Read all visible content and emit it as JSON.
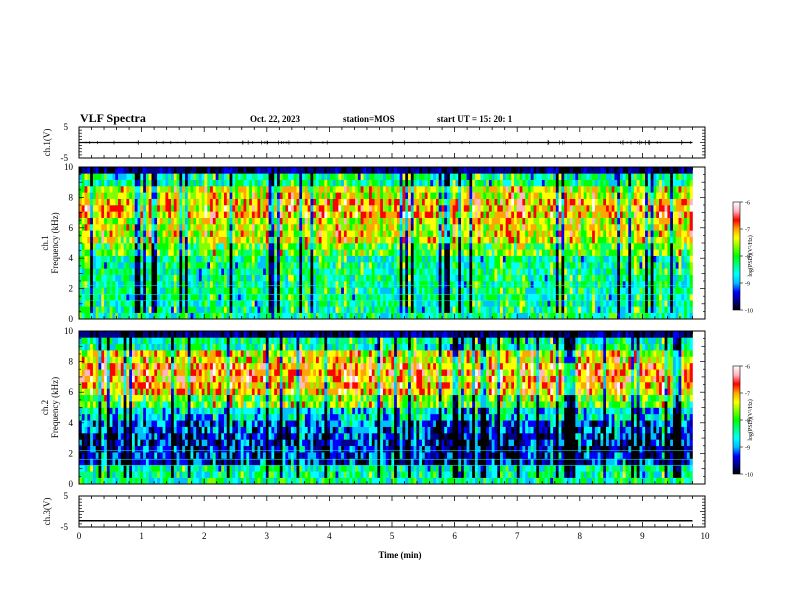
{
  "header": {
    "title": "VLF Spectra",
    "date": "Oct. 22, 2023",
    "station": "station=MOS",
    "start": "start  UT =   15: 20: 1"
  },
  "colors": {
    "spectrum_stops": [
      "#000000",
      "#00008b",
      "#0000ff",
      "#00bfff",
      "#00ffff",
      "#00ff7f",
      "#00ff00",
      "#7fff00",
      "#ffff00",
      "#ffa500",
      "#ff0000",
      "#ffb6c1",
      "#ffffff"
    ]
  },
  "chart_data": [
    {
      "type": "line",
      "ylabel": "ch.1(V)",
      "yticks": [
        "5",
        "-5"
      ],
      "ylim": [
        -5,
        5
      ],
      "x": [
        0,
        2,
        4,
        6,
        8,
        9.8
      ],
      "values": [
        0,
        0,
        0,
        0,
        0,
        0
      ]
    },
    {
      "type": "heatmap",
      "ylabel": "ch.1\nFrequency (kHz)",
      "ylabel_line1": "ch.1",
      "ylabel_line2": "Frequency (kHz)",
      "yticks": [
        "0",
        "2",
        "4",
        "6",
        "8",
        "10"
      ],
      "ylim": [
        0,
        10
      ],
      "xlim": [
        0,
        10
      ],
      "data_end": 9.8,
      "colorbar": {
        "label": "log(PSD)(V²/Hz)",
        "ticks": [
          "-6",
          "-7",
          "-8",
          "-9",
          "-10"
        ],
        "range": [
          -10,
          -6
        ]
      },
      "dominant_band_khz": [
        2,
        9
      ],
      "level_profile": [
        -10,
        -8.5,
        -8.5,
        -8.5,
        -8.5,
        -8,
        -7.5,
        -7.5,
        -7.2,
        -7.5,
        -8.5,
        -10
      ]
    },
    {
      "type": "heatmap",
      "ylabel": "ch.2\nFrequency (kHz)",
      "ylabel_line1": "ch.2",
      "ylabel_line2": "Frequency (kHz)",
      "yticks": [
        "0",
        "2",
        "4",
        "6",
        "8",
        "10"
      ],
      "ylim": [
        0,
        10
      ],
      "xlim": [
        0,
        10
      ],
      "data_end": 9.8,
      "colorbar": {
        "label": "log(PSD)(V²/Hz)",
        "ticks": [
          "-6",
          "-7",
          "-8",
          "-9",
          "-10"
        ],
        "range": [
          -10,
          -6
        ]
      },
      "dominant_band_khz": [
        5.5,
        8
      ],
      "level_profile": [
        -10,
        -8.5,
        -9.5,
        -9.5,
        -9.3,
        -8.8,
        -7.9,
        -7.2,
        -7.0,
        -7.4,
        -8.5,
        -10
      ]
    },
    {
      "type": "line",
      "ylabel": "ch.3(V)",
      "yticks": [
        "5",
        "-5"
      ],
      "ylim": [
        -5,
        5
      ],
      "x": [
        0,
        2,
        4,
        6,
        8,
        9.8
      ],
      "values": [
        -3,
        -3,
        -3,
        -3,
        -3,
        -3
      ]
    }
  ],
  "x_axis": {
    "label": "Time (min)",
    "ticks": [
      "0",
      "1",
      "2",
      "3",
      "4",
      "5",
      "6",
      "7",
      "8",
      "9",
      "10"
    ],
    "range": [
      0,
      10
    ]
  }
}
